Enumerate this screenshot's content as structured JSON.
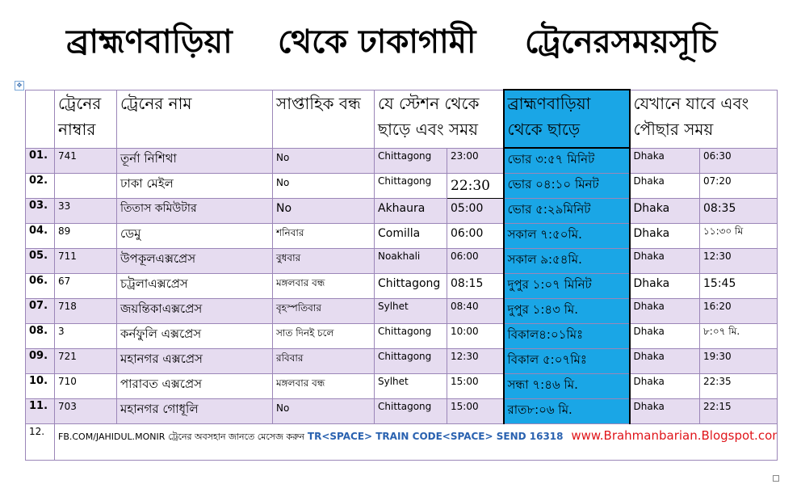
{
  "title": {
    "part1": "ব্রাহ্মণবাড়িয়া",
    "part2": "থেকে ঢাকাগামী",
    "part3": "ট্রেনেরসময়সূচি"
  },
  "headers": {
    "train_no": "ট্রেনের নাম্বার",
    "train_name": "ট্রেনের নাম",
    "weekly_off": "সাপ্তাহিক বন্ধ",
    "origin": "যে স্টেশন থেকে ছাড়ে এবং সময়",
    "bbaria": "ব্রাহ্মণবাড়িয়া থেকে ছাড়ে",
    "dest": "যেখানে যাবে এবং পৌছার সময়"
  },
  "rows": [
    {
      "sl": "01.",
      "no": "741",
      "name": "তূর্না নিশিথা",
      "off": "No",
      "station": "Chittagong",
      "dep": "23:00",
      "bb": "ভোর ৩:৫৭ মিনিট",
      "to": "Dhaka",
      "arr": "06:30"
    },
    {
      "sl": "02.",
      "no": "",
      "name": "ঢাকা মেইল",
      "off": "No",
      "station": "Chittagong",
      "dep": "22:30",
      "bb": "ভোর ০৪:১০ মিনট",
      "to": "Dhaka",
      "arr": "07:20"
    },
    {
      "sl": "03.",
      "no": "33",
      "name": "তিতাস কমিউটার",
      "off": "No",
      "station": "Akhaura",
      "dep": "05:00",
      "bb": "ভোর ৫:২৯মিনিট",
      "to": "Dhaka",
      "arr": "08:35"
    },
    {
      "sl": "04.",
      "no": "89",
      "name": "ডেমু",
      "off": "শনিবার",
      "station": "Comilla",
      "dep": "06:00",
      "bb": "সকাল ৭:৫০মি.",
      "to": "Dhaka",
      "arr": "১১:৩০ মি"
    },
    {
      "sl": "05.",
      "no": "711",
      "name": "উপকূলএক্সপ্রেস",
      "off": "বুধবার",
      "station": "Noakhali",
      "dep": "06:00",
      "bb": "সকাল ৯:৫৪মি.",
      "to": "Dhaka",
      "arr": "12:30"
    },
    {
      "sl": "06.",
      "no": "67",
      "name": "চট্রলাএক্সপ্রেস",
      "off": "মঙ্গলবার বন্ধ",
      "station": "Chittagong",
      "dep": "08:15",
      "bb": "দুপুর ১:০৭ মিনিট",
      "to": "Dhaka",
      "arr": "15:45"
    },
    {
      "sl": "07.",
      "no": "718",
      "name": "জয়ন্তিকাএক্সপ্রেস",
      "off": "বৃহস্পতিবার",
      "station": "Sylhet",
      "dep": "08:40",
      "bb": "দুপুর ১:৪৩ মি.",
      "to": "Dhaka",
      "arr": "16:20"
    },
    {
      "sl": "08.",
      "no": "3",
      "name": "কর্নফুলি এক্সপ্রেস",
      "off": "সাত দিনই চলে",
      "station": "Chittagong",
      "dep": "10:00",
      "bb": "বিকাল৪:০১মিঃ",
      "to": "Dhaka",
      "arr": "৮:০৭ মি."
    },
    {
      "sl": "09.",
      "no": "721",
      "name": "মহানগর এক্সপ্রেস",
      "off": "রবিবার",
      "station": "Chittagong",
      "dep": "12:30",
      "bb": "বিকাল ৫:০৭মিঃ",
      "to": "Dhaka",
      "arr": "19:30"
    },
    {
      "sl": "10.",
      "no": "710",
      "name": "পারাবত এক্সপ্রেস",
      "off": "মঙ্গলবার বন্ধ",
      "station": "Sylhet",
      "dep": "15:00",
      "bb": "সন্ধা ৭:৪৬ মি.",
      "to": "Dhaka",
      "arr": "22:35"
    },
    {
      "sl": "11.",
      "no": "703",
      "name": "মহানগর গোধূলি",
      "off": "No",
      "station": "Chittagong",
      "dep": "15:00",
      "bb": "রাত৮:০৬ মি.",
      "to": "Dhaka",
      "arr": "22:15"
    }
  ],
  "footer": {
    "sl": "12.",
    "fb": "FB.COM/JAHIDUL.MONIR",
    "msg": "ট্রেনের অবসহান জানতে মেসেজ করুন",
    "code": "TR<SPACE> TRAIN CODE<SPACE> SEND 16318",
    "url": "www.Brahmanbarian.Blogspot.com"
  },
  "colors": {
    "highlight": "#1aa6e6",
    "row_tint": "#e6dcf0",
    "border": "#9b86b8",
    "url": "#e0151a",
    "code": "#2a62b0"
  }
}
